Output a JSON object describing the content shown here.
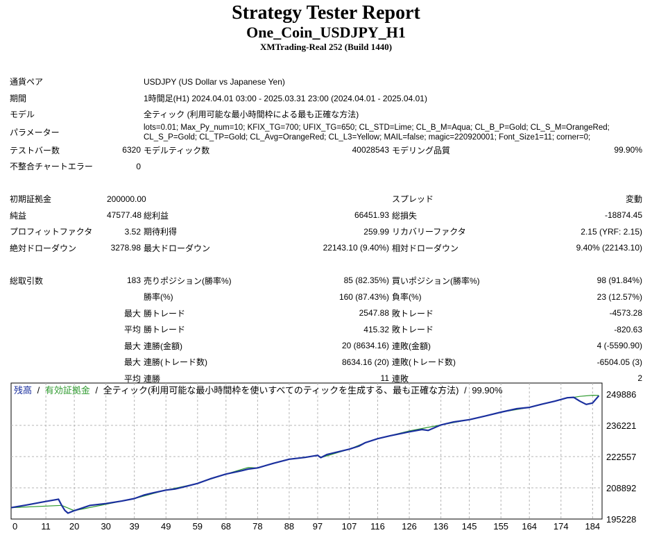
{
  "header": {
    "title": "Strategy Tester Report",
    "subtitle": "One_Coin_USDJPY_H1",
    "server": "XMTrading-Real 252 (Build 1440)"
  },
  "settings": {
    "symbol_label": "通貨ペア",
    "symbol_value": "USDJPY (US Dollar vs Japanese Yen)",
    "period_label": "期間",
    "period_value": "1時間足(H1) 2024.04.01 03:00 - 2025.03.31 23:00 (2024.04.01 - 2025.04.01)",
    "model_label": "モデル",
    "model_value": "全ティック (利用可能な最小時間枠による最も正確な方法)",
    "params_label": "パラメーター",
    "params_value": "lots=0.01; Max_Py_num=10; KFIX_TG=700; UFIX_TG=650; CL_STD=Lime; CL_B_M=Aqua; CL_B_P=Gold; CL_S_M=OrangeRed; CL_S_P=Gold; CL_TP=Gold; CL_Avg=OrangeRed; CL_L3=Yellow; MAIL=false; magic=220920001; Font_Size1=11; corner=0;"
  },
  "stats": {
    "bars_label": "テストバー数",
    "bars_value": "6320",
    "ticks_label": "モデルティック数",
    "ticks_value": "40028543",
    "quality_label": "モデリング品質",
    "quality_value": "99.90%",
    "mismatch_label": "不整合チャートエラー",
    "mismatch_value": "0",
    "deposit_label": "初期証拠金",
    "deposit_value": "200000.00",
    "spread_label": "スプレッド",
    "spread_value": "変動",
    "net_label": "純益",
    "net_value": "47577.48",
    "gross_profit_label": "総利益",
    "gross_profit_value": "66451.93",
    "gross_loss_label": "総損失",
    "gross_loss_value": "-18874.45",
    "pf_label": "プロフィットファクタ",
    "pf_value": "3.52",
    "payoff_label": "期待利得",
    "payoff_value": "259.99",
    "recovery_label": "リカバリーファクタ",
    "recovery_value": "2.15 (YRF: 2.15)",
    "abs_dd_label": "絶対ドローダウン",
    "abs_dd_value": "3278.98",
    "max_dd_label": "最大ドローダウン",
    "max_dd_value": "22143.10 (9.40%)",
    "rel_dd_label": "相対ドローダウン",
    "rel_dd_value": "9.40% (22143.10)",
    "trades_label": "総取引数",
    "trades_value": "183",
    "short_label": "売りポジション(勝率%)",
    "short_value": "85 (82.35%)",
    "long_label": "買いポジション(勝率%)",
    "long_value": "98 (91.84%)",
    "win_rate_label": "勝率(%)",
    "win_rate_value": "160 (87.43%)",
    "loss_rate_label": "負率(%)",
    "loss_rate_value": "23 (12.57%)",
    "max_label": "最大",
    "avg_label": "平均",
    "best_label": "勝トレード",
    "best_value": "2547.88",
    "worst_label": "敗トレード",
    "worst_value": "-4573.28",
    "avg_win_label": "勝トレード",
    "avg_win_value": "415.32",
    "avg_loss_label": "敗トレード",
    "avg_loss_value": "-820.63",
    "cons_wins_amt_label": "連勝(金額)",
    "cons_wins_amt_value": "20 (8634.16)",
    "cons_losses_amt_label": "連敗(金額)",
    "cons_losses_amt_value": "4 (-5590.90)",
    "cons_profit_label": "連勝(トレード数)",
    "cons_profit_value": "8634.16 (20)",
    "cons_loss_label": "連敗(トレード数)",
    "cons_loss_value": "-6504.05 (3)",
    "avg_cons_wins_label": "連勝",
    "avg_cons_wins_value": "11",
    "avg_cons_losses_label": "連敗",
    "avg_cons_losses_value": "2"
  },
  "chart_data": {
    "type": "line",
    "legend": {
      "balance": "残高",
      "sep1": "/",
      "equity": "有効証拠金",
      "sep2": "/",
      "info": "全ティック(利用可能な最小時間枠を使いすべてのティックを生成する、最も正確な方法)",
      "sep3": "/",
      "quality": "99.90%"
    },
    "colors": {
      "balance": "#1a2f9e",
      "equity": "#2e9a2e",
      "grid": "#b4b4b4",
      "border": "#000000"
    },
    "ylim": [
      195228,
      249886
    ],
    "xlim": [
      0,
      187
    ],
    "y_ticks": [
      "249886",
      "236221",
      "222557",
      "208892",
      "195228"
    ],
    "y_tick_values": [
      249886,
      236221,
      222557,
      208892,
      195228
    ],
    "x_ticks": [
      "0",
      "11",
      "20",
      "30",
      "39",
      "49",
      "59",
      "68",
      "78",
      "88",
      "97",
      "107",
      "116",
      "126",
      "136",
      "145",
      "155",
      "164",
      "174",
      "184"
    ],
    "x_tick_values": [
      0,
      11,
      20,
      30,
      39,
      49,
      59,
      68,
      78,
      88,
      97,
      107,
      116,
      126,
      136,
      145,
      155,
      164,
      174,
      184
    ],
    "series": [
      {
        "name": "残高",
        "x": [
          0,
          5,
          10,
          15,
          16,
          17,
          18,
          20,
          25,
          30,
          35,
          39,
          42,
          45,
          49,
          52,
          55,
          59,
          63,
          68,
          73,
          75,
          78,
          83,
          88,
          93,
          97,
          98,
          100,
          107,
          110,
          112,
          116,
          120,
          126,
          130,
          132,
          136,
          140,
          145,
          150,
          155,
          160,
          164,
          168,
          172,
          176,
          178,
          180,
          182,
          184,
          186
        ],
        "y": [
          200200,
          201400,
          202700,
          203900,
          201200,
          199000,
          197800,
          198900,
          201200,
          202000,
          203100,
          204200,
          205700,
          206700,
          207900,
          208400,
          209400,
          210800,
          212800,
          214900,
          216400,
          217100,
          217600,
          219600,
          221400,
          222200,
          223100,
          222100,
          223500,
          225800,
          227100,
          228600,
          230400,
          231700,
          233400,
          234400,
          234000,
          236400,
          237700,
          238700,
          240300,
          242000,
          243500,
          244100,
          245500,
          246800,
          248300,
          248500,
          246800,
          245400,
          246000,
          249200
        ]
      },
      {
        "name": "有効証拠金",
        "x": [
          0,
          16,
          20,
          39,
          49,
          59,
          68,
          75,
          78,
          88,
          97,
          98,
          107,
          112,
          116,
          126,
          136,
          145,
          155,
          164,
          172,
          176,
          178,
          180,
          184,
          186
        ],
        "y": [
          200200,
          201200,
          198900,
          204200,
          207900,
          210800,
          214900,
          217800,
          217600,
          221400,
          223100,
          222100,
          225800,
          228600,
          230400,
          233800,
          236400,
          238700,
          242000,
          244100,
          246800,
          248400,
          248500,
          248900,
          249400,
          249300
        ]
      }
    ]
  }
}
